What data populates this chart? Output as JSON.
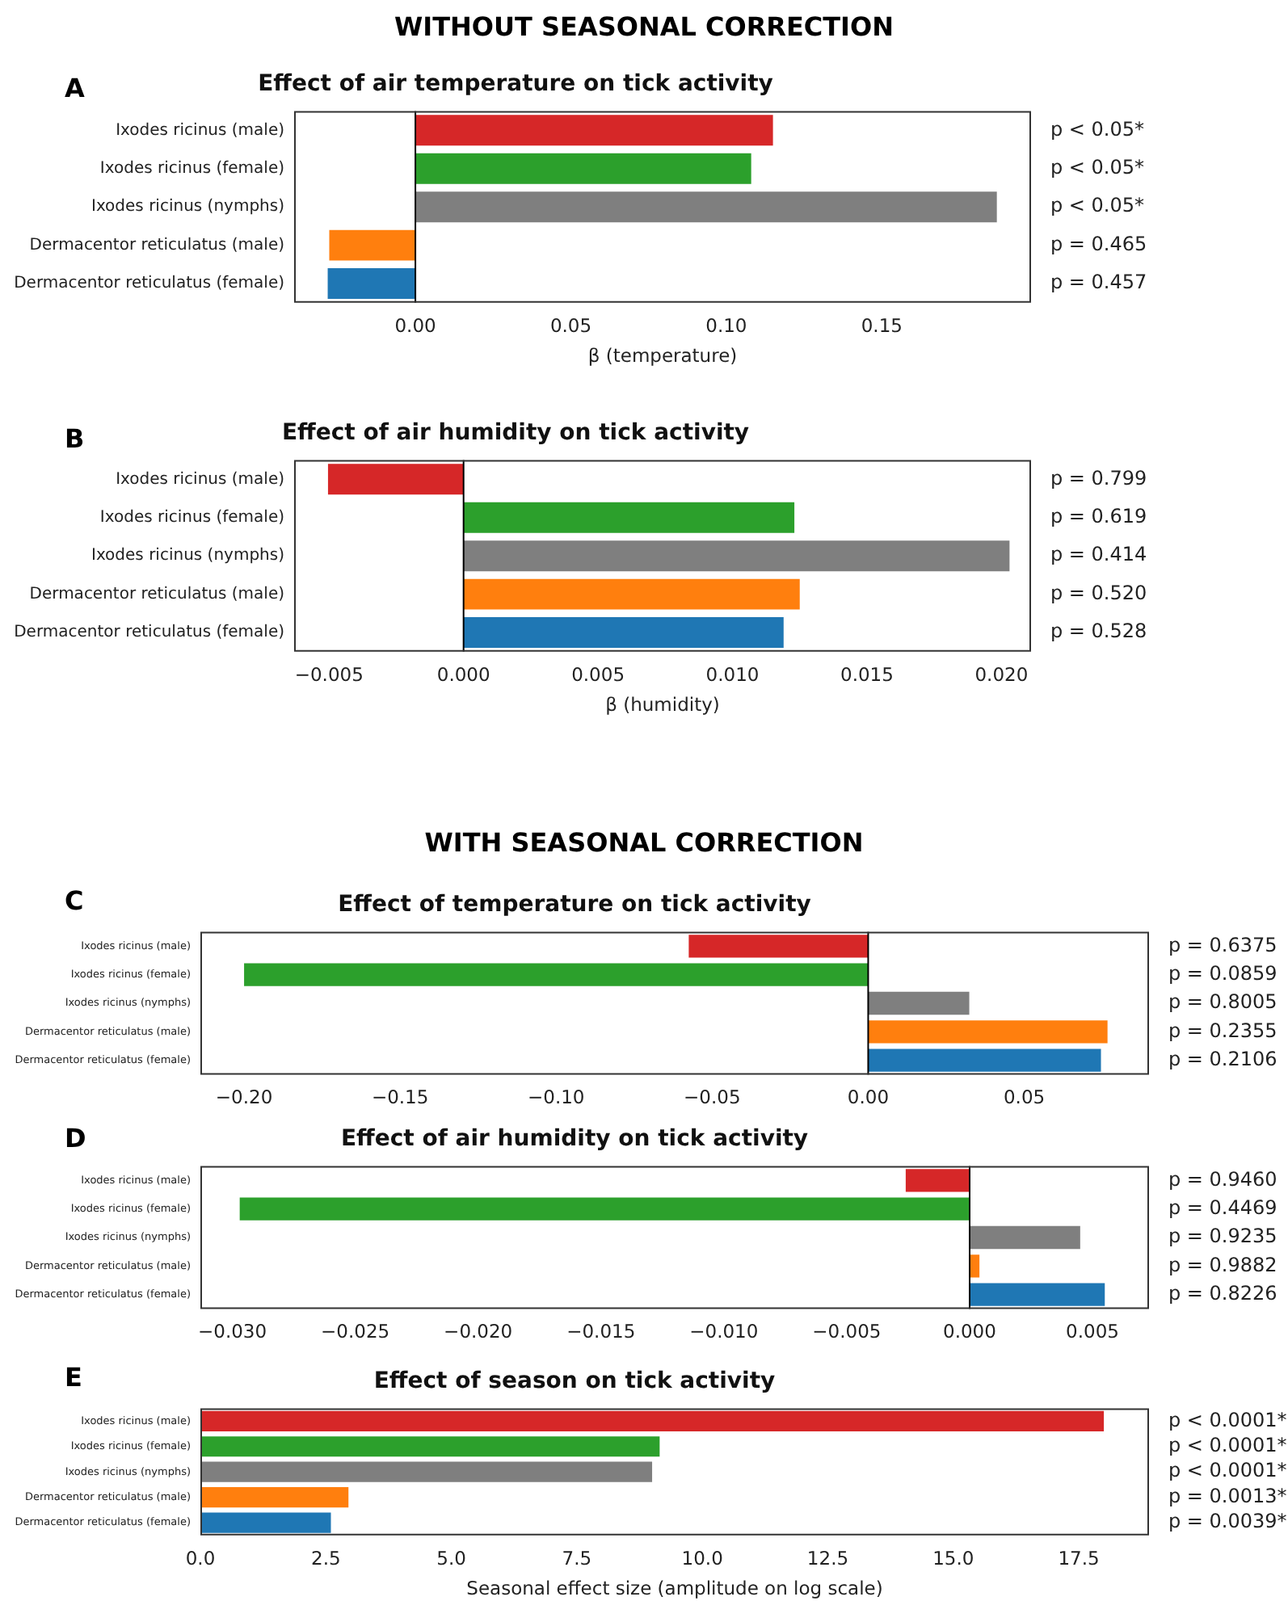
{
  "chart_data": [
    {
      "type": "bar",
      "orientation": "horizontal",
      "title": "Effect of air temperature on tick activity",
      "xlabel": "β (temperature)",
      "categories": [
        "Ixodes ricinus (male)",
        "Ixodes ricinus (female)",
        "Ixodes ricinus (nymphs)",
        "Dermacentor reticulatus (male)",
        "Dermacentor reticulatus (female)"
      ],
      "values": [
        0.115,
        0.108,
        0.187,
        -0.0277,
        -0.0282
      ],
      "colors": [
        "#d62728",
        "#2ca02c",
        "#7f7f7f",
        "#ff7f0e",
        "#1f77b4"
      ],
      "xlim": [
        -0.039,
        0.198
      ],
      "xticks": [
        {
          "value": 0,
          "label": "0.00"
        },
        {
          "value": 0.05,
          "label": "0.05"
        },
        {
          "value": 0.1,
          "label": "0.10"
        },
        {
          "value": 0.15,
          "label": "0.15"
        }
      ],
      "ref_lines": [
        {
          "axis": "x",
          "value": 0,
          "color": "#000000"
        }
      ],
      "grid": false,
      "legend": false,
      "annotations": [
        "WITHOUT SEASONAL CORRECTION",
        "A",
        "p < 0.05*",
        "p < 0.05*",
        "p < 0.05*",
        "p = 0.465",
        "p = 0.457"
      ]
    },
    {
      "type": "bar",
      "orientation": "horizontal",
      "title": "Effect of air humidity on tick activity",
      "xlabel": "β (humidity)",
      "categories": [
        "Ixodes ricinus (male)",
        "Ixodes ricinus (female)",
        "Ixodes ricinus (nymphs)",
        "Dermacentor reticulatus (male)",
        "Dermacentor reticulatus (female)"
      ],
      "values": [
        -0.00504,
        0.0123,
        0.0203,
        0.0125,
        0.0119
      ],
      "colors": [
        "#d62728",
        "#2ca02c",
        "#7f7f7f",
        "#ff7f0e",
        "#1f77b4"
      ],
      "xlim": [
        -0.0063,
        0.0211
      ],
      "xticks": [
        {
          "value": -0.005,
          "label": "−0.005"
        },
        {
          "value": 0,
          "label": "0.000"
        },
        {
          "value": 0.005,
          "label": "0.005"
        },
        {
          "value": 0.01,
          "label": "0.010"
        },
        {
          "value": 0.015,
          "label": "0.015"
        },
        {
          "value": 0.02,
          "label": "0.020"
        }
      ],
      "ref_lines": [
        {
          "axis": "x",
          "value": 0,
          "color": "#000000"
        }
      ],
      "grid": false,
      "legend": false,
      "annotations": [
        "B",
        "p = 0.799",
        "p = 0.619",
        "p = 0.414",
        "p = 0.520",
        "p = 0.528"
      ]
    },
    {
      "type": "bar",
      "orientation": "horizontal",
      "title": "Effect of temperature on tick activity",
      "categories": [
        "Ixodes ricinus (male)",
        "Ixodes ricinus (female)",
        "Ixodes ricinus (nymphs)",
        "Dermacentor reticulatus (male)",
        "Dermacentor reticulatus (female)"
      ],
      "values": [
        -0.0575,
        -0.2,
        0.0324,
        0.0767,
        0.0746
      ],
      "colors": [
        "#d62728",
        "#2ca02c",
        "#7f7f7f",
        "#ff7f0e",
        "#1f77b4"
      ],
      "xlim": [
        -0.214,
        0.09
      ],
      "xticks": [
        {
          "value": -0.2,
          "label": "−0.20"
        },
        {
          "value": -0.15,
          "label": "−0.15"
        },
        {
          "value": -0.1,
          "label": "−0.10"
        },
        {
          "value": -0.05,
          "label": "−0.05"
        },
        {
          "value": 0,
          "label": "0.00"
        },
        {
          "value": 0.05,
          "label": "0.05"
        }
      ],
      "ref_lines": [
        {
          "axis": "x",
          "value": 0,
          "color": "#000000"
        }
      ],
      "grid": false,
      "legend": false,
      "annotations": [
        "WITH SEASONAL CORRECTION",
        "C",
        "p = 0.6375",
        "p = 0.0859",
        "p = 0.8005",
        "p = 0.2355",
        "p = 0.2106"
      ]
    },
    {
      "type": "bar",
      "orientation": "horizontal",
      "title": "Effect of air humidity on tick activity",
      "categories": [
        "Ixodes ricinus (male)",
        "Ixodes ricinus (female)",
        "Ixodes ricinus (nymphs)",
        "Dermacentor reticulatus (male)",
        "Dermacentor reticulatus (female)"
      ],
      "values": [
        -0.0026,
        -0.0297,
        0.0045,
        0.0004,
        0.0055
      ],
      "colors": [
        "#d62728",
        "#2ca02c",
        "#7f7f7f",
        "#ff7f0e",
        "#1f77b4"
      ],
      "xlim": [
        -0.0313,
        0.0073
      ],
      "xticks": [
        {
          "value": -0.03,
          "label": "−0.030"
        },
        {
          "value": -0.025,
          "label": "−0.025"
        },
        {
          "value": -0.02,
          "label": "−0.020"
        },
        {
          "value": -0.015,
          "label": "−0.015"
        },
        {
          "value": -0.01,
          "label": "−0.010"
        },
        {
          "value": -0.005,
          "label": "−0.005"
        },
        {
          "value": 0,
          "label": "0.000"
        },
        {
          "value": 0.005,
          "label": "0.005"
        }
      ],
      "ref_lines": [
        {
          "axis": "x",
          "value": 0,
          "color": "#000000"
        }
      ],
      "grid": false,
      "legend": false,
      "annotations": [
        "D",
        "p = 0.9460",
        "p = 0.4469",
        "p = 0.9235",
        "p = 0.9882",
        "p = 0.8226"
      ]
    },
    {
      "type": "bar",
      "orientation": "horizontal",
      "title": "Effect of season on tick activity",
      "xlabel": "Seasonal effect size (amplitude on log scale)",
      "categories": [
        "Ixodes ricinus (male)",
        "Ixodes ricinus (female)",
        "Ixodes ricinus (nymphs)",
        "Dermacentor reticulatus (male)",
        "Dermacentor reticulatus (female)"
      ],
      "values": [
        18.0,
        9.15,
        9.0,
        2.95,
        2.6
      ],
      "colors": [
        "#d62728",
        "#2ca02c",
        "#7f7f7f",
        "#ff7f0e",
        "#1f77b4"
      ],
      "xlim": [
        0,
        18.9
      ],
      "xticks": [
        {
          "value": 0,
          "label": "0.0"
        },
        {
          "value": 2.5,
          "label": "2.5"
        },
        {
          "value": 5,
          "label": "5.0"
        },
        {
          "value": 7.5,
          "label": "7.5"
        },
        {
          "value": 10,
          "label": "10.0"
        },
        {
          "value": 12.5,
          "label": "12.5"
        },
        {
          "value": 15,
          "label": "15.0"
        },
        {
          "value": 17.5,
          "label": "17.5"
        }
      ],
      "grid": false,
      "legend": false,
      "annotations": [
        "E",
        "p < 0.0001*",
        "p < 0.0001*",
        "p < 0.0001*",
        "p = 0.0013*",
        "p = 0.0039*"
      ]
    }
  ]
}
